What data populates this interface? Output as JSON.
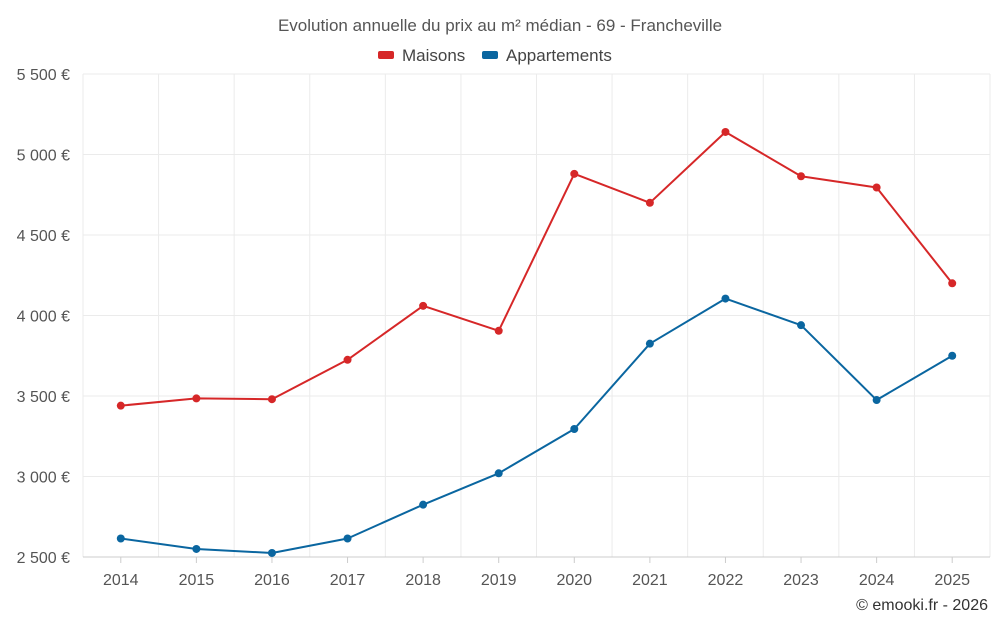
{
  "chart_data": {
    "type": "line",
    "title": "Evolution annuelle du prix au m² médian - 69 - Francheville",
    "categories": [
      "2014",
      "2015",
      "2016",
      "2017",
      "2018",
      "2019",
      "2020",
      "2021",
      "2022",
      "2023",
      "2024",
      "2025"
    ],
    "series": [
      {
        "name": "Maisons",
        "color": "#d62728",
        "values": [
          3440,
          3485,
          3480,
          3725,
          4060,
          3905,
          4880,
          4700,
          5140,
          4865,
          4795,
          4200
        ]
      },
      {
        "name": "Appartements",
        "color": "#0a66a0",
        "values": [
          2615,
          2550,
          2525,
          2615,
          2825,
          3020,
          3295,
          3825,
          4105,
          3940,
          3475,
          3750
        ]
      }
    ],
    "ylim": [
      2500,
      5500
    ],
    "yticks": [
      2500,
      3000,
      3500,
      4000,
      4500,
      5000,
      5500
    ],
    "ytick_labels": [
      "2 500 €",
      "3 000 €",
      "3 500 €",
      "4 000 €",
      "4 500 €",
      "5 000 €",
      "5 500 €"
    ],
    "xlabel": "",
    "ylabel": "",
    "grid": true,
    "legend_position": "top-center"
  },
  "credit": "© emooki.fr - 2026"
}
